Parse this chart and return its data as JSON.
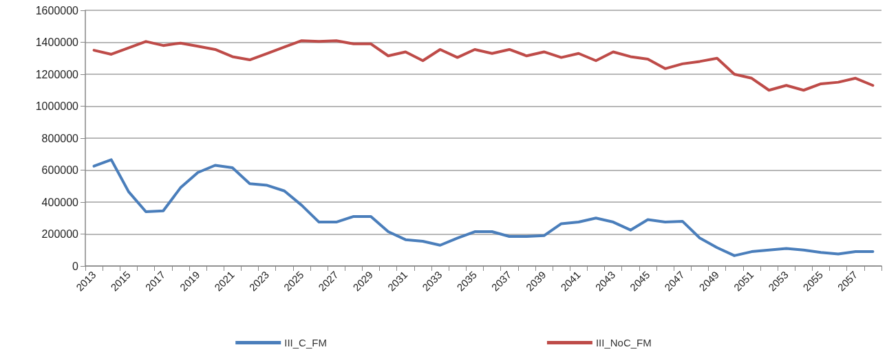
{
  "chart_data": {
    "type": "line",
    "categories": [
      "2013",
      null,
      "2015",
      null,
      "2017",
      null,
      "2019",
      null,
      "2021",
      null,
      "2023",
      null,
      "2025",
      null,
      "2027",
      null,
      "2029",
      null,
      "2031",
      null,
      "2033",
      null,
      "2035",
      null,
      "2037",
      null,
      "2039",
      null,
      "2041",
      null,
      "2043",
      null,
      "2045",
      null,
      "2047",
      null,
      "2049",
      null,
      "2051",
      null,
      "2053",
      null,
      "2055",
      null,
      "2057",
      null
    ],
    "series": [
      {
        "name": "III_C_FM",
        "color": "#4a7ebb",
        "values": [
          625000,
          665000,
          465000,
          340000,
          345000,
          490000,
          585000,
          630000,
          615000,
          515000,
          505000,
          470000,
          380000,
          275000,
          275000,
          310000,
          310000,
          215000,
          165000,
          155000,
          130000,
          175000,
          215000,
          215000,
          185000,
          185000,
          190000,
          265000,
          275000,
          300000,
          275000,
          225000,
          290000,
          275000,
          280000,
          175000,
          115000,
          65000,
          90000,
          100000,
          110000,
          100000,
          85000,
          75000,
          90000,
          90000
        ]
      },
      {
        "name": "III_NoC_FM",
        "color": "#be4b48",
        "values": [
          1350000,
          1325000,
          1365000,
          1405000,
          1380000,
          1395000,
          1375000,
          1355000,
          1310000,
          1290000,
          1330000,
          1370000,
          1410000,
          1405000,
          1410000,
          1390000,
          1390000,
          1315000,
          1340000,
          1285000,
          1355000,
          1305000,
          1355000,
          1330000,
          1355000,
          1315000,
          1340000,
          1305000,
          1330000,
          1285000,
          1340000,
          1310000,
          1295000,
          1235000,
          1265000,
          1280000,
          1300000,
          1200000,
          1175000,
          1100000,
          1130000,
          1100000,
          1140000,
          1150000,
          1175000,
          1130000
        ]
      }
    ],
    "ylim": [
      0,
      1600000
    ],
    "yticks": [
      0,
      200000,
      400000,
      600000,
      800000,
      1000000,
      1200000,
      1400000,
      1600000
    ],
    "grid": "y",
    "legend": "bottom",
    "marker": "none",
    "line_style": "solid"
  }
}
